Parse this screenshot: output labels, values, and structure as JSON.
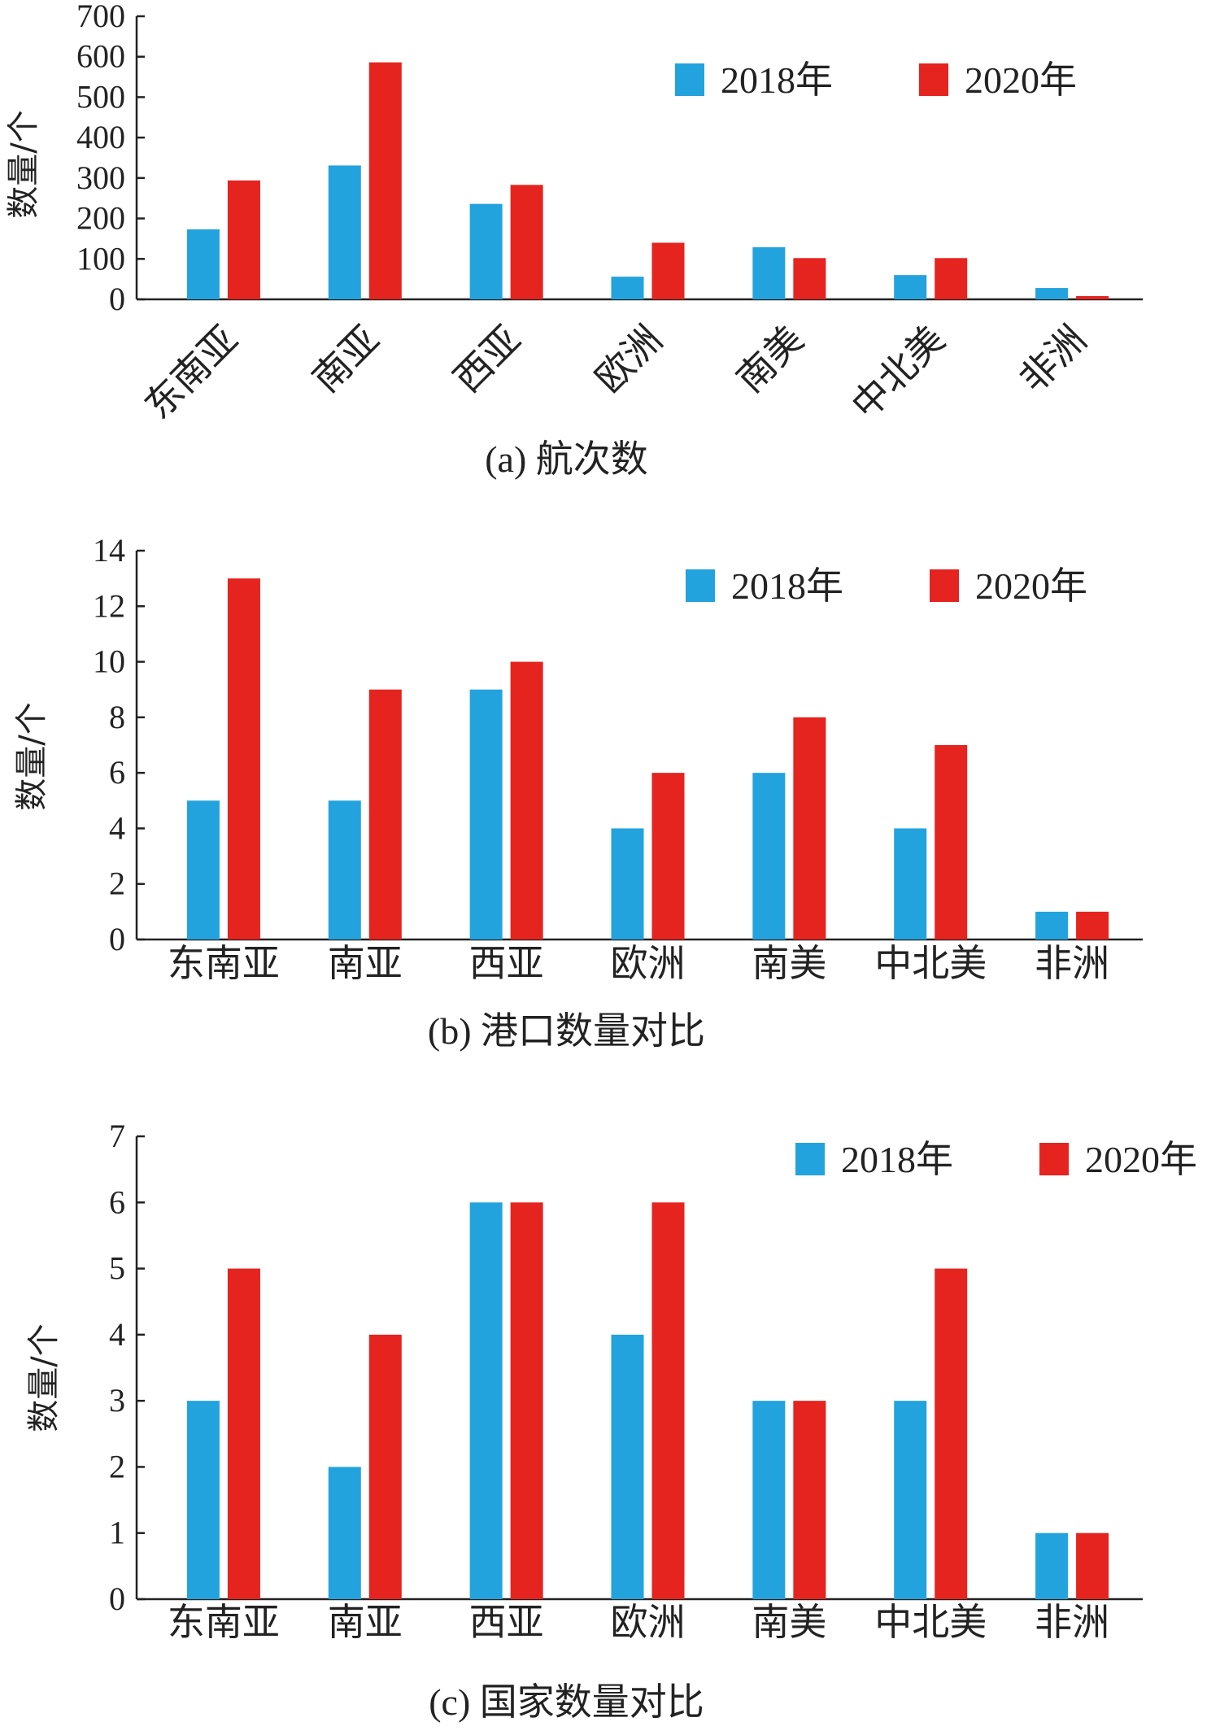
{
  "chart_data": [
    {
      "type": "bar",
      "caption": "(a) 航次数",
      "ylabel": "数量/个",
      "ylim": [
        0,
        700
      ],
      "yticks": [
        0,
        100,
        200,
        300,
        400,
        500,
        600,
        700
      ],
      "categories": [
        "东南亚",
        "南亚",
        "西亚",
        "欧洲",
        "南美",
        "中北美",
        "非洲"
      ],
      "categories_rotated": true,
      "legend_position": "top-right",
      "series": [
        {
          "name": "2018年",
          "color": "#22a3dd",
          "values": [
            173,
            331,
            236,
            56,
            129,
            60,
            28
          ]
        },
        {
          "name": "2020年",
          "color": "#e5231f",
          "values": [
            294,
            586,
            283,
            140,
            102,
            102,
            8
          ]
        }
      ]
    },
    {
      "type": "bar",
      "caption": "(b) 港口数量对比",
      "ylabel": "数量/个",
      "ylim": [
        0,
        14
      ],
      "yticks": [
        0,
        2,
        4,
        6,
        8,
        10,
        12,
        14
      ],
      "categories": [
        "东南亚",
        "南亚",
        "西亚",
        "欧洲",
        "南美",
        "中北美",
        "非洲"
      ],
      "categories_rotated": false,
      "legend_position": "top-right",
      "series": [
        {
          "name": "2018年",
          "color": "#22a3dd",
          "values": [
            5,
            5,
            9,
            4,
            6,
            4,
            1
          ]
        },
        {
          "name": "2020年",
          "color": "#e5231f",
          "values": [
            13,
            9,
            10,
            6,
            8,
            7,
            1
          ]
        }
      ]
    },
    {
      "type": "bar",
      "caption": "(c) 国家数量对比",
      "ylabel": "数量/个",
      "ylim": [
        0,
        7
      ],
      "yticks": [
        0,
        1,
        2,
        3,
        4,
        5,
        6,
        7
      ],
      "categories": [
        "东南亚",
        "南亚",
        "西亚",
        "欧洲",
        "南美",
        "中北美",
        "非洲"
      ],
      "categories_rotated": false,
      "legend_position": "top-right",
      "series": [
        {
          "name": "2018年",
          "color": "#22a3dd",
          "values": [
            3,
            2,
            6,
            4,
            3,
            3,
            1
          ]
        },
        {
          "name": "2020年",
          "color": "#e5231f",
          "values": [
            5,
            4,
            6,
            6,
            3,
            5,
            1
          ]
        }
      ]
    }
  ]
}
